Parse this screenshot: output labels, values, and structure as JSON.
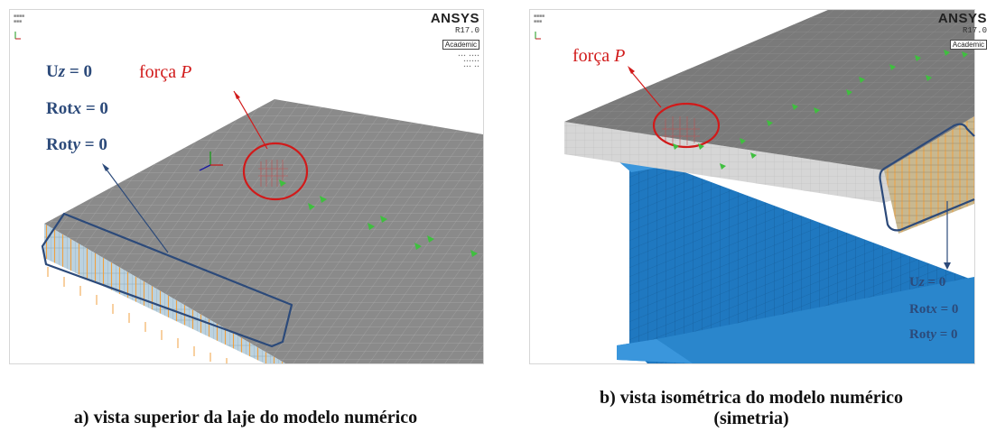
{
  "panel_a": {
    "logo": {
      "name": "ANSYS",
      "release": "R17.0",
      "badge": "Academic"
    },
    "labels": {
      "uz": {
        "base": "U",
        "axis": "z",
        "value": "= 0"
      },
      "rotx": {
        "base": "Rot",
        "axis": "x",
        "value": "= 0"
      },
      "roty": {
        "base": "Rot",
        "axis": "y",
        "value": "= 0"
      },
      "force": {
        "text": "força",
        "symbol": "P"
      }
    },
    "caption": "a) vista superior da laje do modelo numérico"
  },
  "panel_b": {
    "logo": {
      "name": "ANSYS",
      "release": "R17.0",
      "badge": "Academic"
    },
    "labels": {
      "uz": {
        "base": "U",
        "axis": "z",
        "value": "= 0"
      },
      "rotx": {
        "base": "Rot",
        "axis": "x",
        "value": "= 0"
      },
      "roty": {
        "base": "Rot",
        "axis": "y",
        "value": "= 0"
      },
      "force": {
        "text": "força",
        "symbol": "P"
      }
    },
    "caption_line1": "b) vista isométrica do modelo numérico",
    "caption_line2": "(simetria)"
  },
  "colors": {
    "slab_top": "#8c8c8c",
    "slab_side": "#d4d4d4",
    "mesh_line": "#b3b3b3",
    "steel": "#1f78c0",
    "constraint": "#f0a040",
    "label_blue": "#2c4a7a",
    "force_red": "#d11a1a",
    "load_arrow": "#3fbf3f"
  }
}
